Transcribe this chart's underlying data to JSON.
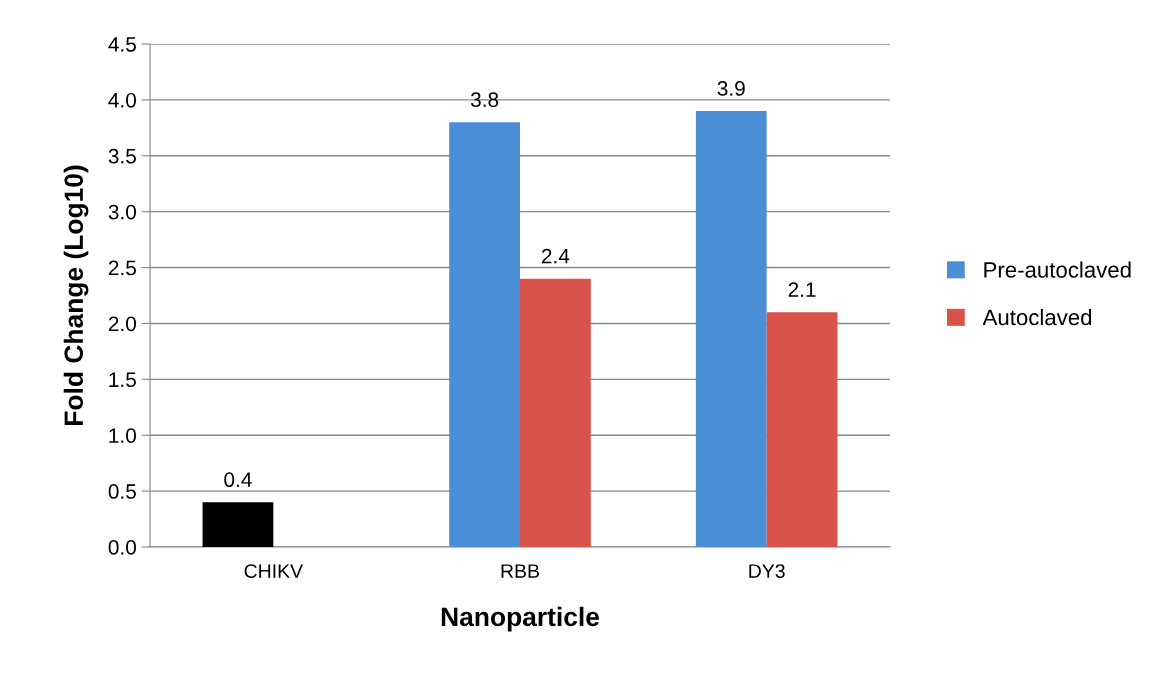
{
  "chart_data": {
    "type": "bar",
    "xlabel": "Nanoparticle",
    "ylabel": "Fold Change (Log10)",
    "categories": [
      "CHIKV",
      "RBB",
      "DY3"
    ],
    "series": [
      {
        "name": "Pre-autoclaved",
        "color": "#4a8fd6",
        "colors": [
          "#000000",
          "#4a8fd6",
          "#4a8fd6"
        ],
        "values": [
          0.4,
          3.8,
          3.9
        ]
      },
      {
        "name": "Autoclaved",
        "color": "#d9534a",
        "values": [
          null,
          2.4,
          2.1
        ]
      }
    ],
    "ylim": [
      0,
      4.5
    ],
    "yticks": [
      {
        "value": 0,
        "label": "0.0"
      },
      {
        "value": 0.5,
        "label": "0.5"
      },
      {
        "value": 1,
        "label": "1.0"
      },
      {
        "value": 1.5,
        "label": "1.5"
      },
      {
        "value": 2,
        "label": "2.0"
      },
      {
        "value": 2.5,
        "label": "2.5"
      },
      {
        "value": 3,
        "label": "3.0"
      },
      {
        "value": 3.5,
        "label": "3.5"
      },
      {
        "value": 4,
        "label": "4.0"
      },
      {
        "value": 4.5,
        "label": "4.5"
      }
    ],
    "grid": "y",
    "legend": "right",
    "data_labels": true
  }
}
